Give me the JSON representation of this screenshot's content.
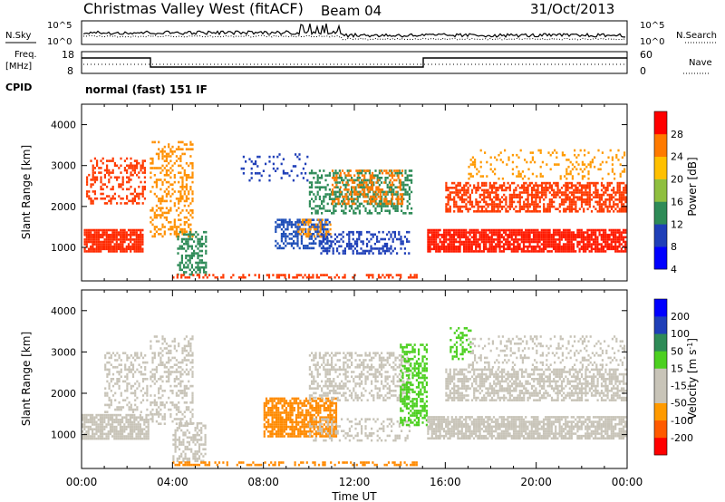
{
  "header": {
    "title": "Christmas Valley West (fitACF)",
    "beam": "Beam 04",
    "date": "31/Oct/2013"
  },
  "aux": {
    "nsky_label": "N.Sky",
    "nsearch_label": "N.Search",
    "noise_ticks_left": [
      "10^5",
      "10^0"
    ],
    "noise_ticks_right": [
      "10^5",
      "10^0"
    ],
    "freq_label_1": "Freq.",
    "freq_label_2": "[MHz]",
    "freq_ticks": [
      "18",
      "8"
    ],
    "nave_label": "Nave",
    "nave_ticks": [
      "60",
      "0"
    ],
    "cpid_label": "CPID",
    "cpid_text": "normal (fast) 151 IF"
  },
  "chart_data": [
    {
      "type": "heatmap",
      "name": "power",
      "ylabel": "Slant Range [km]",
      "yticks": [
        1000,
        2000,
        3000,
        4000
      ],
      "ylim": [
        180,
        4500
      ],
      "xlim": [
        0,
        24
      ],
      "colorbar_label": "Power [dB]",
      "colorbar_ticks": [
        "28",
        "24",
        "20",
        "16",
        "12",
        "8",
        "4"
      ],
      "colorbar_colors": [
        "#0000ff",
        "#1f3fb8",
        "#2e8b57",
        "#8fbf3f",
        "#ffc000",
        "#ff7a00",
        "#ff0000"
      ],
      "regions": [
        {
          "x0": 0.1,
          "x1": 2.8,
          "y0": 850,
          "y1": 1450,
          "color": "#ff2a00",
          "density": 0.85
        },
        {
          "x0": 0.2,
          "x1": 2.9,
          "y0": 2000,
          "y1": 3200,
          "color": "#ff3a00",
          "density": 0.35
        },
        {
          "x0": 3.0,
          "x1": 5.0,
          "y0": 1200,
          "y1": 3600,
          "color": "#ff9000",
          "density": 0.35
        },
        {
          "x0": 4.2,
          "x1": 5.6,
          "y0": 300,
          "y1": 1400,
          "color": "#2e8b57",
          "density": 0.5
        },
        {
          "x0": 8.5,
          "x1": 11.0,
          "y0": 900,
          "y1": 1700,
          "color": "#1f4fb8",
          "density": 0.6
        },
        {
          "x0": 9.5,
          "x1": 11.0,
          "y0": 1200,
          "y1": 1700,
          "color": "#ff9000",
          "density": 0.4
        },
        {
          "x0": 10.0,
          "x1": 14.6,
          "y0": 1800,
          "y1": 2900,
          "color": "#2e8b57",
          "density": 0.45
        },
        {
          "x0": 11.0,
          "x1": 14.2,
          "y0": 2000,
          "y1": 2900,
          "color": "#ff7a00",
          "density": 0.35
        },
        {
          "x0": 10.5,
          "x1": 14.5,
          "y0": 800,
          "y1": 1400,
          "color": "#1f3fb8",
          "density": 0.4
        },
        {
          "x0": 7.0,
          "x1": 10.0,
          "y0": 2600,
          "y1": 3300,
          "color": "#1f3fb8",
          "density": 0.12
        },
        {
          "x0": 15.2,
          "x1": 24.0,
          "y0": 850,
          "y1": 1450,
          "color": "#ff1a00",
          "density": 0.85
        },
        {
          "x0": 16.0,
          "x1": 24.0,
          "y0": 1800,
          "y1": 2600,
          "color": "#ff3a00",
          "density": 0.6
        },
        {
          "x0": 17.0,
          "x1": 24.0,
          "y0": 2600,
          "y1": 3400,
          "color": "#ff9a00",
          "density": 0.2
        },
        {
          "x0": 4.0,
          "x1": 14.8,
          "y0": 180,
          "y1": 350,
          "color": "#ff3a00",
          "density": 0.4
        }
      ]
    },
    {
      "type": "heatmap",
      "name": "velocity",
      "xlabel": "Time UT",
      "ylabel": "Slant Range [km]",
      "yticks": [
        1000,
        2000,
        3000,
        4000
      ],
      "ylim": [
        180,
        4500
      ],
      "xlim": [
        0,
        24
      ],
      "xticks": [
        "00:00",
        "04:00",
        "08:00",
        "12:00",
        "16:00",
        "20:00",
        "00:00"
      ],
      "colorbar_label": "Velocity [m s-1]",
      "colorbar_ticks": [
        "200",
        "100",
        "50",
        "15",
        "-15",
        "-50",
        "-100",
        "-200"
      ],
      "colorbar_colors": [
        "#ff0000",
        "#ff5a00",
        "#ff9a00",
        "#c8c4b8",
        "#c8c4b8",
        "#4cd020",
        "#2e8b57",
        "#1f3fb8",
        "#0000ff"
      ],
      "regions": [
        {
          "x0": 0.0,
          "x1": 3.0,
          "y0": 850,
          "y1": 1500,
          "color": "#c8c4b8",
          "density": 0.8
        },
        {
          "x0": 1.0,
          "x1": 3.0,
          "y0": 1500,
          "y1": 3000,
          "color": "#c8c4b8",
          "density": 0.35
        },
        {
          "x0": 3.0,
          "x1": 5.0,
          "y0": 1200,
          "y1": 3400,
          "color": "#c8c4b8",
          "density": 0.35
        },
        {
          "x0": 4.0,
          "x1": 5.5,
          "y0": 300,
          "y1": 1300,
          "color": "#c8c4b8",
          "density": 0.5
        },
        {
          "x0": 8.0,
          "x1": 11.3,
          "y0": 900,
          "y1": 1900,
          "color": "#ff8a00",
          "density": 0.75
        },
        {
          "x0": 10.0,
          "x1": 14.5,
          "y0": 1800,
          "y1": 3000,
          "color": "#c8c4b8",
          "density": 0.45
        },
        {
          "x0": 10.0,
          "x1": 14.5,
          "y0": 800,
          "y1": 1400,
          "color": "#c8c4b8",
          "density": 0.3
        },
        {
          "x0": 14.0,
          "x1": 15.3,
          "y0": 1200,
          "y1": 3200,
          "color": "#4cd020",
          "density": 0.55
        },
        {
          "x0": 15.2,
          "x1": 24.0,
          "y0": 850,
          "y1": 1450,
          "color": "#c8c4b8",
          "density": 0.8
        },
        {
          "x0": 16.0,
          "x1": 24.0,
          "y0": 1800,
          "y1": 2600,
          "color": "#c8c4b8",
          "density": 0.6
        },
        {
          "x0": 16.2,
          "x1": 17.2,
          "y0": 2800,
          "y1": 3600,
          "color": "#4cd020",
          "density": 0.4
        },
        {
          "x0": 17.0,
          "x1": 24.0,
          "y0": 2600,
          "y1": 3400,
          "color": "#c8c4b8",
          "density": 0.2
        },
        {
          "x0": 4.0,
          "x1": 14.8,
          "y0": 180,
          "y1": 350,
          "color": "#ff8a00",
          "density": 0.4
        }
      ]
    }
  ]
}
